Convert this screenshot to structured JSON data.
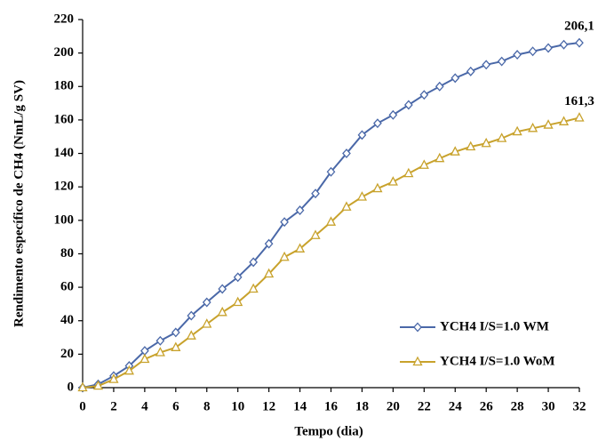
{
  "chart_data": {
    "type": "line",
    "x_label": "Tempo (dia)",
    "y_label": "Rendimento específico de CH4 (NmL/g SV)",
    "x": [
      0,
      1,
      2,
      3,
      4,
      5,
      6,
      7,
      8,
      9,
      10,
      11,
      12,
      13,
      14,
      15,
      16,
      17,
      18,
      19,
      20,
      21,
      22,
      23,
      24,
      25,
      26,
      27,
      28,
      29,
      30,
      31,
      32
    ],
    "xlim": [
      0,
      32
    ],
    "xticks": [
      0,
      2,
      4,
      6,
      8,
      10,
      12,
      14,
      16,
      18,
      20,
      22,
      24,
      26,
      28,
      30,
      32
    ],
    "ylim": [
      0,
      220
    ],
    "yticks": [
      0,
      20,
      40,
      60,
      80,
      100,
      120,
      140,
      160,
      180,
      200,
      220
    ],
    "legend": "lower right",
    "series": [
      {
        "name": "YCH4 I/S=1.0 WM",
        "color": "#4a68a8",
        "marker": "diamond",
        "values": [
          0,
          2,
          7,
          13,
          22,
          28,
          33,
          43,
          51,
          59,
          66,
          75,
          86,
          99,
          106,
          116,
          129,
          140,
          151,
          158,
          163,
          169,
          175,
          180,
          185,
          189,
          193,
          195,
          199,
          201,
          203,
          205,
          206.1
        ],
        "value_labels": [
          null,
          null,
          null,
          null,
          null,
          null,
          null,
          null,
          null,
          null,
          null,
          null,
          null,
          null,
          null,
          null,
          null,
          null,
          null,
          null,
          null,
          null,
          null,
          null,
          null,
          null,
          null,
          null,
          null,
          null,
          null,
          null,
          "206,1"
        ]
      },
      {
        "name": "YCH4 I/S=1.0 WoM",
        "color": "#c8a22c",
        "marker": "triangle",
        "values": [
          0,
          1,
          5,
          10,
          17,
          21,
          24,
          31,
          38,
          45,
          51,
          59,
          68,
          78,
          83,
          91,
          99,
          108,
          114,
          119,
          123,
          128,
          133,
          137,
          141,
          144,
          146,
          149,
          153,
          155,
          157,
          159,
          161.3
        ],
        "value_labels": [
          null,
          null,
          null,
          null,
          null,
          null,
          null,
          null,
          null,
          null,
          null,
          null,
          null,
          null,
          null,
          null,
          null,
          null,
          null,
          null,
          null,
          null,
          null,
          null,
          null,
          null,
          null,
          null,
          null,
          null,
          null,
          null,
          "161,3"
        ]
      }
    ]
  }
}
